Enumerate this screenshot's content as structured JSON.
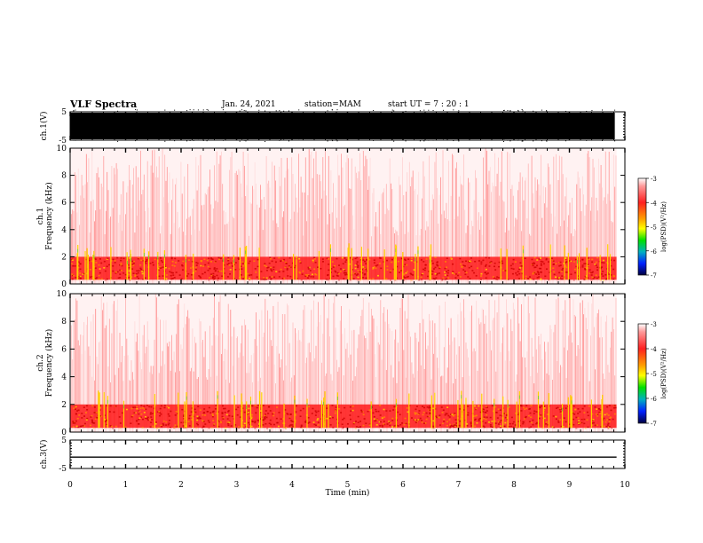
{
  "header": {
    "title": "VLF Spectra",
    "date": "Jan. 24, 2021",
    "station": "station=MAM",
    "start": "start UT =  7 : 20 : 1"
  },
  "chart_data": [
    {
      "type": "line",
      "name": "ch1-waveform",
      "ylabel": "ch.1(V)",
      "ylim": [
        -5,
        5
      ],
      "yticks": [
        "5",
        "-5"
      ],
      "description_values": {
        "amplitude_V": 5,
        "saturated": true
      }
    },
    {
      "type": "heatmap",
      "name": "ch1-spectrogram",
      "ylabel_line1": "ch.1",
      "ylabel_line2": "Frequency (kHz)",
      "ylim": [
        0,
        10
      ],
      "yticks": [
        "0",
        "2",
        "4",
        "6",
        "8",
        "10"
      ],
      "colorbar": {
        "label": "log(PSD)(V²/Hz)",
        "range": [
          -7,
          -3
        ],
        "ticks": [
          "-3",
          "-4",
          "-5",
          "-6",
          "-7"
        ]
      },
      "band_kHz": [
        0.3,
        2.0
      ]
    },
    {
      "type": "heatmap",
      "name": "ch2-spectrogram",
      "ylabel_line1": "ch.2",
      "ylabel_line2": "Frequency (kHz)",
      "ylim": [
        0,
        10
      ],
      "yticks": [
        "0",
        "2",
        "4",
        "6",
        "8",
        "10"
      ],
      "colorbar": {
        "label": "log(PSD)(V²/Hz)",
        "range": [
          -7,
          -3
        ],
        "ticks": [
          "-3",
          "-4",
          "-5",
          "-6",
          "-7"
        ]
      },
      "band_kHz": [
        0.3,
        2.0
      ]
    },
    {
      "type": "line",
      "name": "ch3-waveform",
      "ylabel": "ch.3(V)",
      "ylim": [
        -5,
        5
      ],
      "yticks": [
        "5",
        "-5"
      ],
      "x": [
        0,
        9.85
      ],
      "y": [
        -1.0,
        -1.0
      ]
    }
  ],
  "xaxis": {
    "label": "Time (min)",
    "range": [
      0,
      10
    ],
    "ticks": [
      "0",
      "1",
      "2",
      "3",
      "4",
      "5",
      "6",
      "7",
      "8",
      "9",
      "10"
    ],
    "data_end_min": 9.85
  },
  "colors": {
    "background": "#ffffff",
    "spec_low": "#ffffff",
    "spec_mid": "#ff3030",
    "spec_high": "#ffcc00",
    "waveform": "#000000"
  }
}
